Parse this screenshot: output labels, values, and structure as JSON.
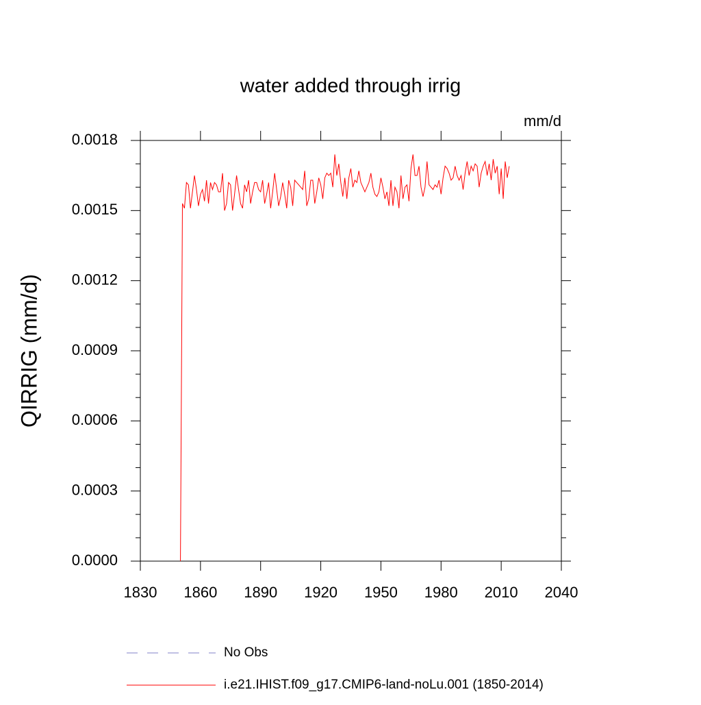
{
  "chart_data": {
    "type": "line",
    "title": "water added through irrig",
    "units_label": "mm/d",
    "y_label": "QIRRIG  (mm/d)",
    "xlim": [
      1830,
      2040
    ],
    "xticks": [
      1830,
      1860,
      1890,
      1920,
      1950,
      1980,
      2010,
      2040
    ],
    "ylim": [
      0,
      0.0018
    ],
    "yticks": [
      {
        "value": 0,
        "label": "0.0000"
      },
      0.0003,
      0.0006,
      0.0009,
      0.0012,
      0.0015,
      0.0018
    ],
    "y_minor_ticks": [
      0.0001,
      0.0002,
      0.0004,
      0.0005,
      0.0007,
      0.0008,
      0.001,
      0.0011,
      0.0013,
      0.0014,
      0.0016,
      0.0017
    ],
    "x": [
      1850,
      1851,
      1852,
      1853,
      1854,
      1855,
      1856,
      1857,
      1858,
      1859,
      1860,
      1861,
      1862,
      1863,
      1864,
      1865,
      1866,
      1867,
      1868,
      1869,
      1870,
      1871,
      1872,
      1873,
      1874,
      1875,
      1876,
      1877,
      1878,
      1879,
      1880,
      1881,
      1882,
      1883,
      1884,
      1885,
      1886,
      1887,
      1888,
      1889,
      1890,
      1891,
      1892,
      1893,
      1894,
      1895,
      1896,
      1897,
      1898,
      1899,
      1900,
      1901,
      1902,
      1903,
      1904,
      1905,
      1906,
      1907,
      1908,
      1909,
      1910,
      1911,
      1912,
      1913,
      1914,
      1915,
      1916,
      1917,
      1918,
      1919,
      1920,
      1921,
      1922,
      1923,
      1924,
      1925,
      1926,
      1927,
      1928,
      1929,
      1930,
      1931,
      1932,
      1933,
      1934,
      1935,
      1936,
      1937,
      1938,
      1939,
      1940,
      1941,
      1942,
      1943,
      1944,
      1945,
      1946,
      1947,
      1948,
      1949,
      1950,
      1951,
      1952,
      1953,
      1954,
      1955,
      1956,
      1957,
      1958,
      1959,
      1960,
      1961,
      1962,
      1963,
      1964,
      1965,
      1966,
      1967,
      1968,
      1969,
      1970,
      1971,
      1972,
      1973,
      1974,
      1975,
      1976,
      1977,
      1978,
      1979,
      1980,
      1981,
      1982,
      1983,
      1984,
      1985,
      1986,
      1987,
      1988,
      1989,
      1990,
      1991,
      1992,
      1993,
      1994,
      1995,
      1996,
      1997,
      1998,
      1999,
      2000,
      2001,
      2002,
      2003,
      2004,
      2005,
      2006,
      2007,
      2008,
      2009,
      2010,
      2011,
      2012,
      2013,
      2014
    ],
    "series": [
      {
        "name": "i.e21.IHIST.f09_g17.CMIP6-land-noLu.001 (1850-2014)",
        "color": "#ff0000",
        "values": [
          0,
          0.00153,
          0.00151,
          0.00162,
          0.00161,
          0.00151,
          0.00158,
          0.00165,
          0.00159,
          0.00152,
          0.00157,
          0.00159,
          0.00154,
          0.00163,
          0.00153,
          0.00162,
          0.00159,
          0.00162,
          0.00161,
          0.00158,
          0.00158,
          0.00166,
          0.0015,
          0.00153,
          0.00162,
          0.00161,
          0.0015,
          0.00157,
          0.00165,
          0.00159,
          0.00153,
          0.00151,
          0.00161,
          0.00158,
          0.00163,
          0.00153,
          0.00158,
          0.00162,
          0.00162,
          0.00159,
          0.00158,
          0.00163,
          0.00153,
          0.00157,
          0.00162,
          0.00151,
          0.00158,
          0.00166,
          0.00159,
          0.00152,
          0.00156,
          0.00162,
          0.00157,
          0.00151,
          0.00163,
          0.0016,
          0.00152,
          0.00163,
          0.00162,
          0.00161,
          0.0016,
          0.00159,
          0.00167,
          0.00152,
          0.00155,
          0.00163,
          0.00163,
          0.00153,
          0.00158,
          0.00164,
          0.00161,
          0.00155,
          0.00164,
          0.00166,
          0.00165,
          0.00166,
          0.0016,
          0.00174,
          0.00165,
          0.0017,
          0.00162,
          0.00156,
          0.00164,
          0.00155,
          0.00164,
          0.00168,
          0.0016,
          0.00163,
          0.00162,
          0.00167,
          0.00162,
          0.0016,
          0.00158,
          0.0016,
          0.00162,
          0.00166,
          0.0016,
          0.00157,
          0.00156,
          0.00158,
          0.00164,
          0.0016,
          0.00155,
          0.00158,
          0.00152,
          0.00163,
          0.00152,
          0.0016,
          0.00158,
          0.00151,
          0.00165,
          0.00155,
          0.0016,
          0.00161,
          0.00154,
          0.00168,
          0.00174,
          0.00165,
          0.00165,
          0.00169,
          0.0016,
          0.00156,
          0.0016,
          0.00171,
          0.00161,
          0.0016,
          0.00159,
          0.00161,
          0.0016,
          0.00163,
          0.00157,
          0.00164,
          0.00169,
          0.00168,
          0.00166,
          0.00163,
          0.00164,
          0.00169,
          0.00165,
          0.00163,
          0.00165,
          0.00159,
          0.00166,
          0.00171,
          0.00165,
          0.00169,
          0.00167,
          0.0017,
          0.00169,
          0.0016,
          0.00166,
          0.00169,
          0.00171,
          0.00165,
          0.0017,
          0.00163,
          0.00172,
          0.00166,
          0.00169,
          0.00157,
          0.00168,
          0.00155,
          0.00171,
          0.00164,
          0.00169
        ]
      }
    ],
    "reference_lines": [
      {
        "name": "No Obs",
        "color": "#8080c8",
        "style": "dashed"
      }
    ]
  }
}
